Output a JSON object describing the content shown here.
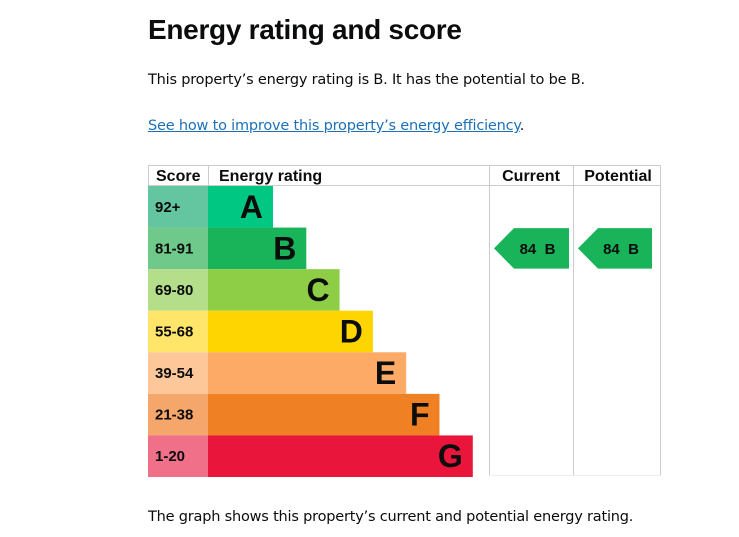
{
  "page": {
    "title": "Energy rating and score",
    "intro": "This property’s energy rating is B. It has the potential to be B.",
    "link_text": "See how to improve this property’s energy efficiency",
    "link_suffix": ".",
    "caption": "The graph shows this property’s current and potential energy rating."
  },
  "chart_data": {
    "type": "bar",
    "title": "Energy rating and score",
    "headers": {
      "score": "Score",
      "rating": "Energy rating",
      "current": "Current",
      "potential": "Potential"
    },
    "bands": [
      {
        "letter": "A",
        "score_range": "92+",
        "color": "#00c781",
        "score_bg": "#63c6a0"
      },
      {
        "letter": "B",
        "score_range": "81-91",
        "color": "#19b459",
        "score_bg": "#6fc98b"
      },
      {
        "letter": "C",
        "score_range": "69-80",
        "color": "#8dce46",
        "score_bg": "#b4de8a"
      },
      {
        "letter": "D",
        "score_range": "55-68",
        "color": "#ffd500",
        "score_bg": "#ffe56a"
      },
      {
        "letter": "E",
        "score_range": "39-54",
        "color": "#fcaa65",
        "score_bg": "#fdc79a"
      },
      {
        "letter": "F",
        "score_range": "21-38",
        "color": "#ef8023",
        "score_bg": "#f5a66a"
      },
      {
        "letter": "G",
        "score_range": "1-20",
        "color": "#e9153b",
        "score_bg": "#f0708a"
      }
    ],
    "current": {
      "score": 84,
      "letter": "B",
      "label": "84  B",
      "color": "#19b459"
    },
    "potential": {
      "score": 84,
      "letter": "B",
      "label": "84  B",
      "color": "#19b459"
    }
  }
}
